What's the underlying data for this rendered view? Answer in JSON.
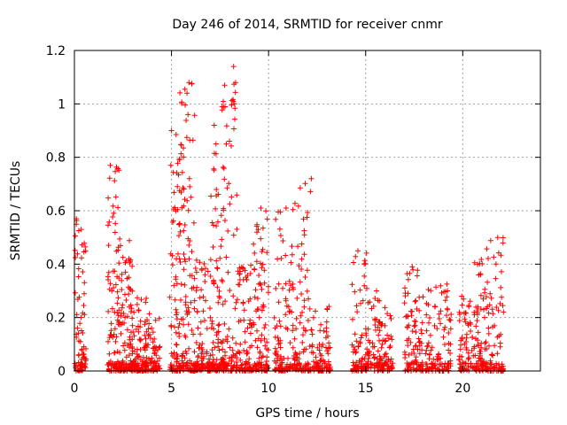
{
  "chart_data": {
    "type": "scatter",
    "title": "Day 246 of 2014, SRMTID for receiver cnmr",
    "xlabel": "GPS time / hours",
    "ylabel": "SRMTID / TECUs",
    "xlim": [
      0,
      24
    ],
    "ylim": [
      0,
      1.2
    ],
    "xticks": [
      0,
      5,
      10,
      15,
      20
    ],
    "yticks": [
      0,
      0.2,
      0.4,
      0.6,
      0.8,
      1,
      1.2
    ],
    "ytick_labels": [
      "0",
      "0.2",
      "0.4",
      "0.6",
      "0.8",
      "1",
      "1.2"
    ],
    "grid": true,
    "marker": "plus",
    "color": "#ff0000",
    "clusters": [
      {
        "x_start": 0.0,
        "x_end": 0.6,
        "peak": 0.57,
        "count": 70
      },
      {
        "x_start": 1.7,
        "x_end": 2.3,
        "peak": 0.77,
        "count": 70
      },
      {
        "x_start": 2.2,
        "x_end": 3.0,
        "peak": 0.5,
        "count": 90
      },
      {
        "x_start": 2.9,
        "x_end": 3.7,
        "peak": 0.3,
        "count": 80
      },
      {
        "x_start": 3.6,
        "x_end": 4.4,
        "peak": 0.22,
        "count": 70
      },
      {
        "x_start": 4.9,
        "x_end": 5.4,
        "peak": 0.9,
        "count": 60
      },
      {
        "x_start": 5.4,
        "x_end": 6.2,
        "peak": 1.08,
        "count": 110
      },
      {
        "x_start": 6.2,
        "x_end": 7.0,
        "peak": 0.45,
        "count": 80
      },
      {
        "x_start": 7.0,
        "x_end": 7.6,
        "peak": 0.92,
        "count": 80
      },
      {
        "x_start": 7.6,
        "x_end": 8.4,
        "peak": 1.14,
        "count": 90
      },
      {
        "x_start": 8.4,
        "x_end": 9.2,
        "peak": 0.4,
        "count": 70
      },
      {
        "x_start": 9.2,
        "x_end": 10.0,
        "peak": 0.61,
        "count": 80
      },
      {
        "x_start": 10.3,
        "x_end": 11.2,
        "peak": 0.61,
        "count": 80
      },
      {
        "x_start": 11.2,
        "x_end": 12.2,
        "peak": 0.72,
        "count": 90
      },
      {
        "x_start": 12.2,
        "x_end": 13.2,
        "peak": 0.25,
        "count": 70
      },
      {
        "x_start": 14.3,
        "x_end": 15.2,
        "peak": 0.45,
        "count": 80
      },
      {
        "x_start": 15.2,
        "x_end": 16.4,
        "peak": 0.3,
        "count": 90
      },
      {
        "x_start": 17.0,
        "x_end": 17.8,
        "peak": 0.39,
        "count": 70
      },
      {
        "x_start": 17.8,
        "x_end": 19.4,
        "peak": 0.33,
        "count": 110
      },
      {
        "x_start": 19.8,
        "x_end": 20.6,
        "peak": 0.28,
        "count": 60
      },
      {
        "x_start": 20.6,
        "x_end": 21.2,
        "peak": 0.42,
        "count": 60
      },
      {
        "x_start": 21.2,
        "x_end": 22.1,
        "peak": 0.5,
        "count": 70
      }
    ],
    "notable_points": [
      {
        "x": 8.2,
        "y": 1.14
      },
      {
        "x": 5.9,
        "y": 1.08
      },
      {
        "x": 8.3,
        "y": 1.08
      },
      {
        "x": 5.8,
        "y": 1.04
      },
      {
        "x": 8.25,
        "y": 1.0
      },
      {
        "x": 5.85,
        "y": 0.96
      },
      {
        "x": 7.2,
        "y": 0.92
      },
      {
        "x": 5.0,
        "y": 0.9
      },
      {
        "x": 1.85,
        "y": 0.77
      },
      {
        "x": 12.2,
        "y": 0.72
      },
      {
        "x": 10.9,
        "y": 0.61
      },
      {
        "x": 9.6,
        "y": 0.61
      },
      {
        "x": 0.1,
        "y": 0.57
      },
      {
        "x": 21.8,
        "y": 0.5
      },
      {
        "x": 14.6,
        "y": 0.45
      },
      {
        "x": 17.4,
        "y": 0.39
      }
    ]
  }
}
